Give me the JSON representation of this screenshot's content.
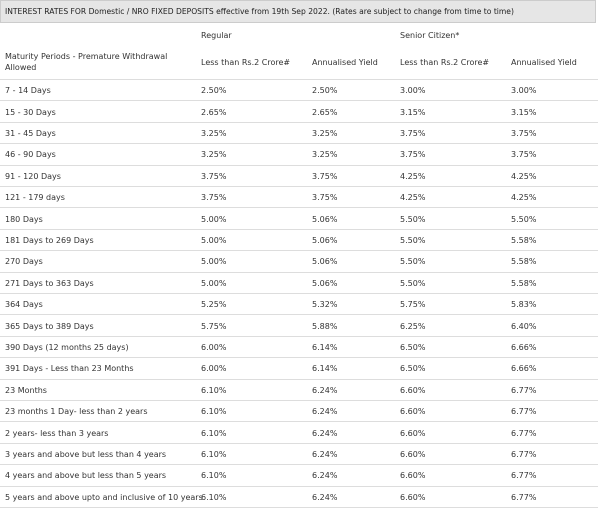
{
  "header": {
    "title": "INTEREST RATES FOR Domestic / NRO FIXED DEPOSITS effective from 19th Sep 2022. (Rates are subject to change from time to time)"
  },
  "table": {
    "groups": [
      "Regular",
      "Senior Citizen*"
    ],
    "columns": [
      "Maturity Periods - Premature Withdrawal Allowed",
      "Less than Rs.2 Crore#",
      "Annualised Yield",
      "Less than Rs.2 Crore#",
      "Annualised Yield"
    ],
    "rows": [
      [
        "7 - 14 Days",
        "2.50%",
        "2.50%",
        "3.00%",
        "3.00%"
      ],
      [
        "15 - 30 Days",
        "2.65%",
        "2.65%",
        "3.15%",
        "3.15%"
      ],
      [
        "31 - 45 Days",
        "3.25%",
        "3.25%",
        "3.75%",
        "3.75%"
      ],
      [
        "46 - 90 Days",
        "3.25%",
        "3.25%",
        "3.75%",
        "3.75%"
      ],
      [
        "91 - 120 Days",
        "3.75%",
        "3.75%",
        "4.25%",
        "4.25%"
      ],
      [
        "121 - 179 days",
        "3.75%",
        "3.75%",
        "4.25%",
        "4.25%"
      ],
      [
        "180 Days",
        "5.00%",
        "5.06%",
        "5.50%",
        "5.50%"
      ],
      [
        "181 Days to 269 Days",
        "5.00%",
        "5.06%",
        "5.50%",
        "5.58%"
      ],
      [
        "270 Days",
        "5.00%",
        "5.06%",
        "5.50%",
        "5.58%"
      ],
      [
        "271 Days to 363 Days",
        "5.00%",
        "5.06%",
        "5.50%",
        "5.58%"
      ],
      [
        "364 Days",
        "5.25%",
        "5.32%",
        "5.75%",
        "5.83%"
      ],
      [
        "365 Days to 389 Days",
        "5.75%",
        "5.88%",
        "6.25%",
        "6.40%"
      ],
      [
        "390 Days (12 months 25 days)",
        "6.00%",
        "6.14%",
        "6.50%",
        "6.66%"
      ],
      [
        "391 Days - Less than 23 Months",
        "6.00%",
        "6.14%",
        "6.50%",
        "6.66%"
      ],
      [
        "23 Months",
        "6.10%",
        "6.24%",
        "6.60%",
        "6.77%"
      ],
      [
        "23 months 1 Day- less than 2 years",
        "6.10%",
        "6.24%",
        "6.60%",
        "6.77%"
      ],
      [
        "2 years- less than 3 years",
        "6.10%",
        "6.24%",
        "6.60%",
        "6.77%"
      ],
      [
        "3 years and above but less than 4 years",
        "6.10%",
        "6.24%",
        "6.60%",
        "6.77%"
      ],
      [
        "4 years and above but less than 5 years",
        "6.10%",
        "6.24%",
        "6.60%",
        "6.77%"
      ],
      [
        "5 years and above upto and inclusive of 10 years",
        "6.10%",
        "6.24%",
        "6.60%",
        "6.77%"
      ]
    ]
  }
}
